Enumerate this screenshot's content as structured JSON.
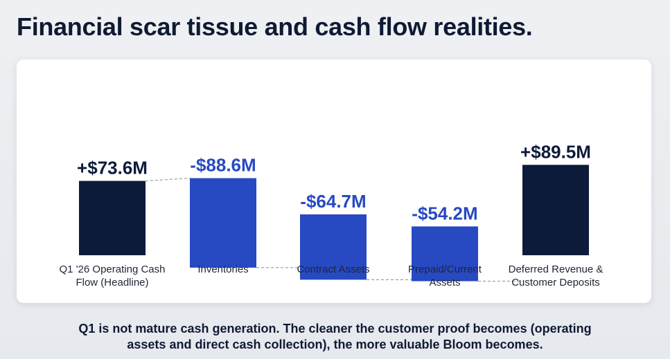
{
  "title": "Financial scar tissue and cash flow realities.",
  "footer": {
    "line1": "Q1 is not mature cash generation. The cleaner the customer proof becomes (operating",
    "line2": "assets and direct cash collection), the more valuable Bloom becomes."
  },
  "colors": {
    "total": "#0d1b3a",
    "delta": "#2749c2",
    "connector": "#9aa0a8"
  },
  "chart_data": {
    "type": "bar",
    "subtype": "waterfall",
    "categories": [
      [
        "Q1 '26 Operating Cash",
        "Flow (Headline)"
      ],
      [
        "Inventories"
      ],
      [
        "Contract Assets"
      ],
      [
        "Prepaid/Current",
        "Assets"
      ],
      [
        "Deferred Revenue &",
        "Customer Deposits"
      ]
    ],
    "values": [
      73.6,
      -88.6,
      -64.7,
      -54.2,
      89.5
    ],
    "labels": [
      "+$73.6M",
      "-$88.6M",
      "-$64.7M",
      "-$54.2M",
      "+$89.5M"
    ],
    "kinds": [
      "total",
      "delta",
      "delta",
      "delta",
      "total"
    ],
    "unit": "$M",
    "grid": false,
    "legend": "none"
  }
}
